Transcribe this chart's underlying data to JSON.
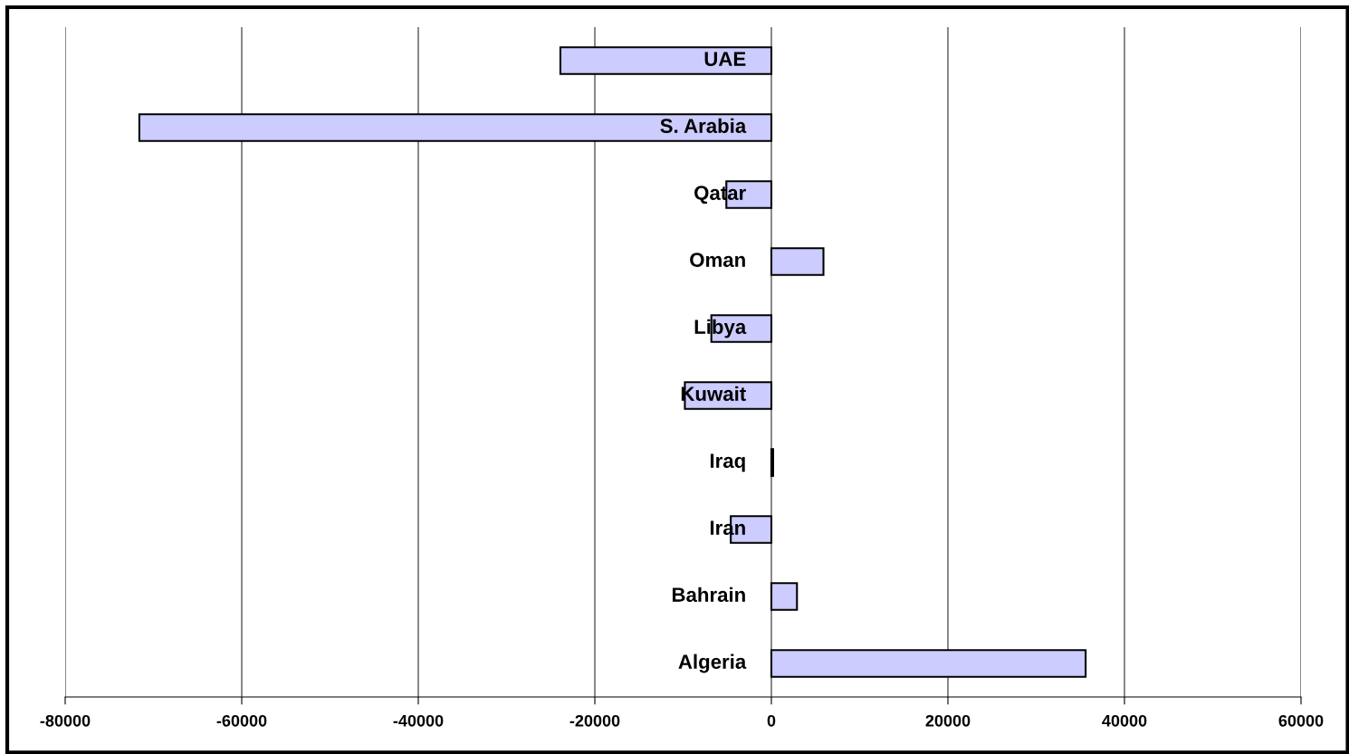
{
  "chart_data": {
    "type": "bar",
    "orientation": "horizontal",
    "categories": [
      "UAE",
      "S. Arabia",
      "Qatar",
      "Oman",
      "Libya",
      "Kuwait",
      "Iraq",
      "Iran",
      "Bahrain",
      "Algeria"
    ],
    "values": [
      -23900,
      -71600,
      -5100,
      5900,
      -6800,
      -9800,
      200,
      -4600,
      2900,
      35600
    ],
    "color": "#ccccff",
    "xlim": [
      -80000,
      60000
    ],
    "xticks": [
      -80000,
      -60000,
      -40000,
      -20000,
      0,
      20000,
      40000,
      60000
    ],
    "grid": "x"
  }
}
